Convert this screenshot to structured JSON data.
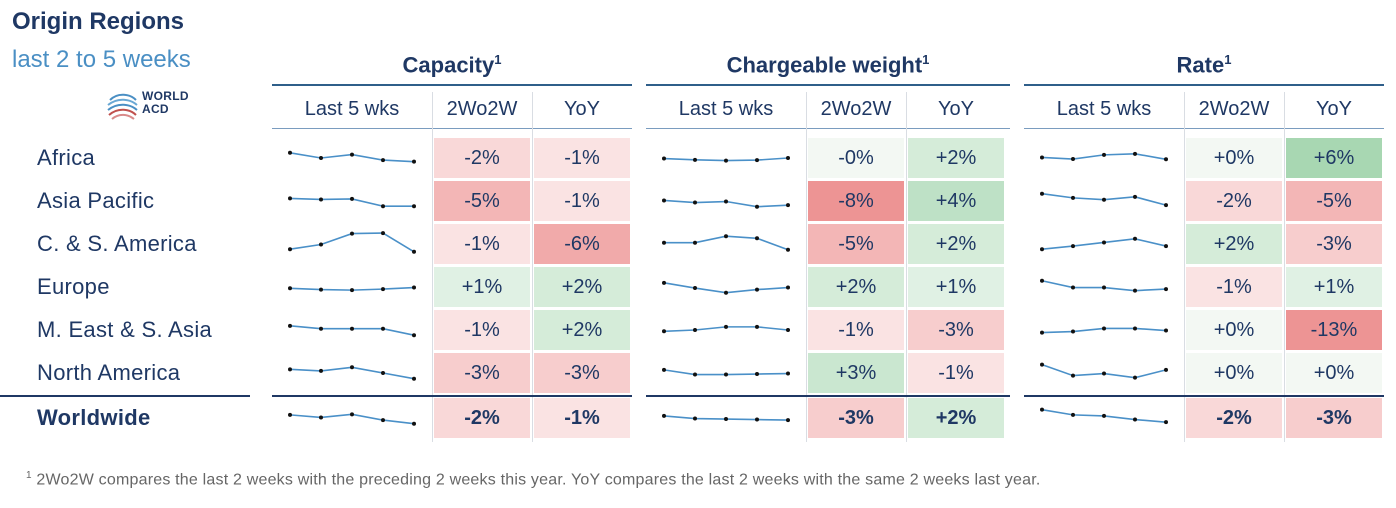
{
  "header": {
    "title": "Origin Regions",
    "subtitle": "last 2 to 5 weeks"
  },
  "logo": {
    "line1": "WORLD",
    "line2": "ACD"
  },
  "footnote": {
    "marker": "1",
    "text": " 2Wo2W compares the last 2 weeks with the preceding 2 weeks this year. YoY compares the last 2 weeks with the same 2 weeks last year."
  },
  "colors": {
    "text": "#1f3864",
    "sparkline": "#4a90c8",
    "positive": "#5cb46e",
    "negative": "#e45a5a",
    "neutral": "#f4f8f4"
  },
  "chart_data": {
    "type": "table",
    "title": "Origin Regions",
    "subtitle": "last 2 to 5 weeks",
    "groups": [
      {
        "name": "Capacity",
        "sup": "1",
        "columns": [
          "Last 5 wks",
          "2Wo2W",
          "YoY"
        ]
      },
      {
        "name": "Chargeable weight",
        "sup": "1",
        "columns": [
          "Last 5 wks",
          "2Wo2W",
          "YoY"
        ]
      },
      {
        "name": "Rate",
        "sup": "1",
        "columns": [
          "Last 5 wks",
          "2Wo2W",
          "YoY"
        ]
      }
    ],
    "rows": [
      {
        "region": "Africa",
        "spark": [
          [
            0.7,
            0.5,
            0.63,
            0.42,
            0.36
          ],
          [
            0.48,
            0.43,
            0.4,
            0.42,
            0.5
          ],
          [
            0.52,
            0.46,
            0.62,
            0.66,
            0.45
          ]
        ],
        "values": [
          [
            "-2%",
            "-1%"
          ],
          [
            "-0%",
            "+2%"
          ],
          [
            "+0%",
            "+6%"
          ]
        ],
        "num": [
          [
            -2,
            -1
          ],
          [
            0,
            2
          ],
          [
            0,
            6
          ]
        ]
      },
      {
        "region": "Asia Pacific",
        "spark": [
          [
            0.6,
            0.56,
            0.58,
            0.3,
            0.3
          ],
          [
            0.52,
            0.44,
            0.48,
            0.28,
            0.34
          ],
          [
            0.78,
            0.62,
            0.55,
            0.66,
            0.34
          ]
        ],
        "values": [
          [
            "-5%",
            "-1%"
          ],
          [
            "-8%",
            "+4%"
          ],
          [
            "-2%",
            "-5%"
          ]
        ],
        "num": [
          [
            -5,
            -1
          ],
          [
            -8,
            4
          ],
          [
            -2,
            -5
          ]
        ]
      },
      {
        "region": "C. & S. America",
        "spark": [
          [
            0.3,
            0.48,
            0.9,
            0.92,
            0.2
          ],
          [
            0.55,
            0.55,
            0.8,
            0.72,
            0.28
          ],
          [
            0.3,
            0.42,
            0.56,
            0.7,
            0.42
          ]
        ],
        "values": [
          [
            "-1%",
            "-6%"
          ],
          [
            "-5%",
            "+2%"
          ],
          [
            "+2%",
            "-3%"
          ]
        ],
        "num": [
          [
            -1,
            -6
          ],
          [
            -5,
            2
          ],
          [
            2,
            -3
          ]
        ]
      },
      {
        "region": "Europe",
        "spark": [
          [
            0.45,
            0.4,
            0.38,
            0.42,
            0.48
          ],
          [
            0.66,
            0.46,
            0.28,
            0.4,
            0.48
          ],
          [
            0.74,
            0.48,
            0.48,
            0.36,
            0.42
          ]
        ],
        "values": [
          [
            "+1%",
            "+2%"
          ],
          [
            "+2%",
            "+1%"
          ],
          [
            "-1%",
            "+1%"
          ]
        ],
        "num": [
          [
            1,
            2
          ],
          [
            2,
            1
          ],
          [
            -1,
            1
          ]
        ]
      },
      {
        "region": "M. East & S. Asia",
        "spark": [
          [
            0.66,
            0.55,
            0.55,
            0.55,
            0.3
          ],
          [
            0.45,
            0.5,
            0.62,
            0.62,
            0.5
          ],
          [
            0.4,
            0.44,
            0.56,
            0.56,
            0.48
          ]
        ],
        "values": [
          [
            "-1%",
            "+2%"
          ],
          [
            "-1%",
            "-3%"
          ],
          [
            "+0%",
            "-13%"
          ]
        ],
        "num": [
          [
            -1,
            2
          ],
          [
            -1,
            -3
          ],
          [
            0,
            -13
          ]
        ]
      },
      {
        "region": "North America",
        "spark": [
          [
            0.64,
            0.58,
            0.72,
            0.5,
            0.28
          ],
          [
            0.62,
            0.44,
            0.44,
            0.46,
            0.48
          ],
          [
            0.82,
            0.4,
            0.48,
            0.32,
            0.62
          ]
        ],
        "values": [
          [
            "-3%",
            "-3%"
          ],
          [
            "+3%",
            "-1%"
          ],
          [
            "+0%",
            "+0%"
          ]
        ],
        "num": [
          [
            -3,
            -3
          ],
          [
            3,
            -1
          ],
          [
            0,
            0
          ]
        ]
      },
      {
        "region": "Worldwide",
        "spark": [
          [
            0.62,
            0.52,
            0.64,
            0.42,
            0.28
          ],
          [
            0.58,
            0.48,
            0.46,
            0.44,
            0.42
          ],
          [
            0.82,
            0.62,
            0.58,
            0.44,
            0.34
          ]
        ],
        "values": [
          [
            "-2%",
            "-1%"
          ],
          [
            "-3%",
            "+2%"
          ],
          [
            "-2%",
            "-3%"
          ]
        ],
        "num": [
          [
            -2,
            -1
          ],
          [
            -3,
            2
          ],
          [
            -2,
            -3
          ]
        ]
      }
    ]
  }
}
